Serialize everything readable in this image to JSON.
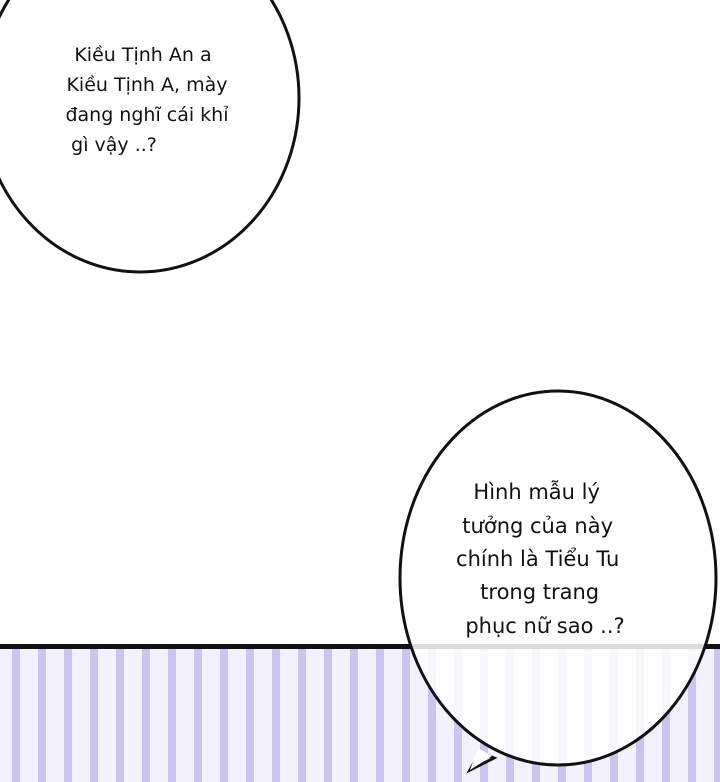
{
  "bubbles": [
    {
      "lines": [
        "Kiều Tịnh An a",
        "Kiều Tịnh A, mày",
        "đang nghĩ cái khỉ",
        "gì vậy ..?"
      ]
    },
    {
      "lines": [
        "Hình mẫu lý",
        "tưởng của này",
        "chính là Tiểu Tu",
        "trong trang",
        "phục nữ sao ..?"
      ]
    }
  ],
  "colors": {
    "stripe": "#c9c5f0",
    "stripe_bg": "#f3f1fd",
    "border": "#111111"
  }
}
